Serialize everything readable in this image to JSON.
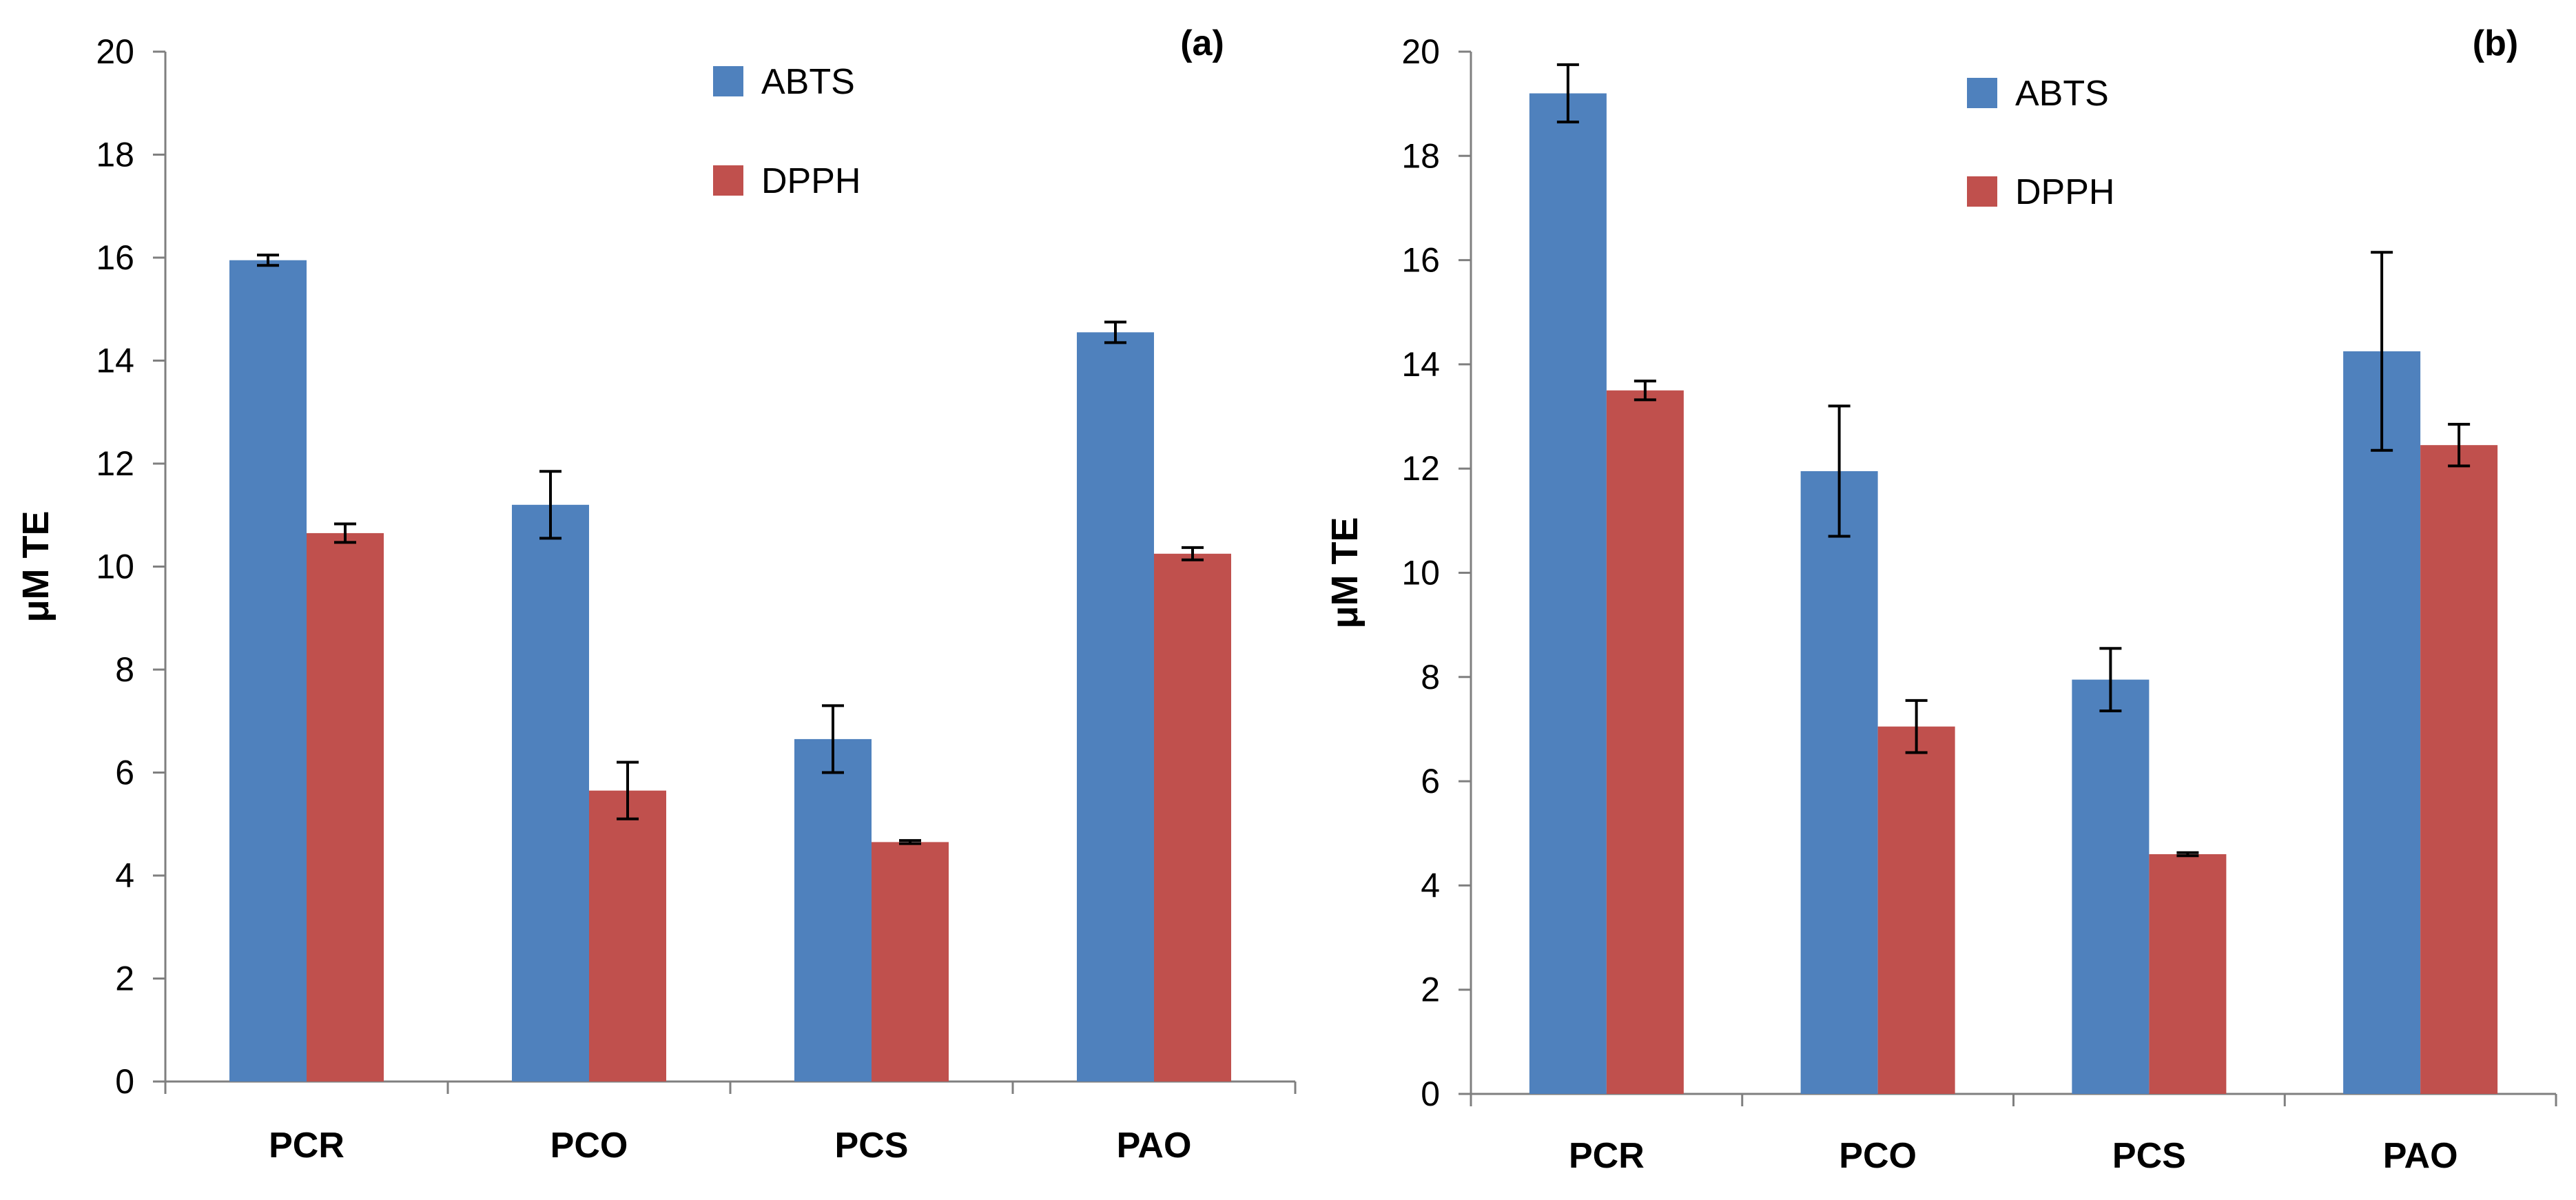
{
  "chart_data": [
    {
      "type": "bar",
      "panel_label": "(a)",
      "ylabel": "μM TE",
      "xlabel": "",
      "ylim": [
        0,
        20
      ],
      "yticks": [
        "0",
        "2",
        "4",
        "6",
        "8",
        "10",
        "12",
        "14",
        "16",
        "18",
        "20"
      ],
      "categories": [
        "PCR",
        "PCO",
        "PCS",
        "PAO"
      ],
      "series": [
        {
          "name": "ABTS",
          "color": "#4f81bd",
          "values": [
            15.95,
            11.2,
            6.65,
            14.55
          ],
          "errors": [
            0.1,
            0.65,
            0.65,
            0.2
          ]
        },
        {
          "name": "DPPH",
          "color": "#c0504d",
          "values": [
            10.65,
            5.65,
            4.65,
            10.25
          ],
          "errors": [
            0.18,
            0.55,
            0.03,
            0.12
          ]
        }
      ]
    },
    {
      "type": "bar",
      "panel_label": "(b)",
      "ylabel": "μM TE",
      "xlabel": "",
      "ylim": [
        0,
        20
      ],
      "yticks": [
        "0",
        "2",
        "4",
        "6",
        "8",
        "10",
        "12",
        "14",
        "16",
        "18",
        "20"
      ],
      "categories": [
        "PCR",
        "PCO",
        "PCS",
        "PAO"
      ],
      "series": [
        {
          "name": "ABTS",
          "color": "#4f81bd",
          "values": [
            19.2,
            11.95,
            7.95,
            14.25
          ],
          "errors": [
            0.55,
            1.25,
            0.6,
            1.9
          ]
        },
        {
          "name": "DPPH",
          "color": "#c0504d",
          "values": [
            13.5,
            7.05,
            4.6,
            12.45
          ],
          "errors": [
            0.18,
            0.5,
            0.03,
            0.4
          ]
        }
      ]
    }
  ]
}
